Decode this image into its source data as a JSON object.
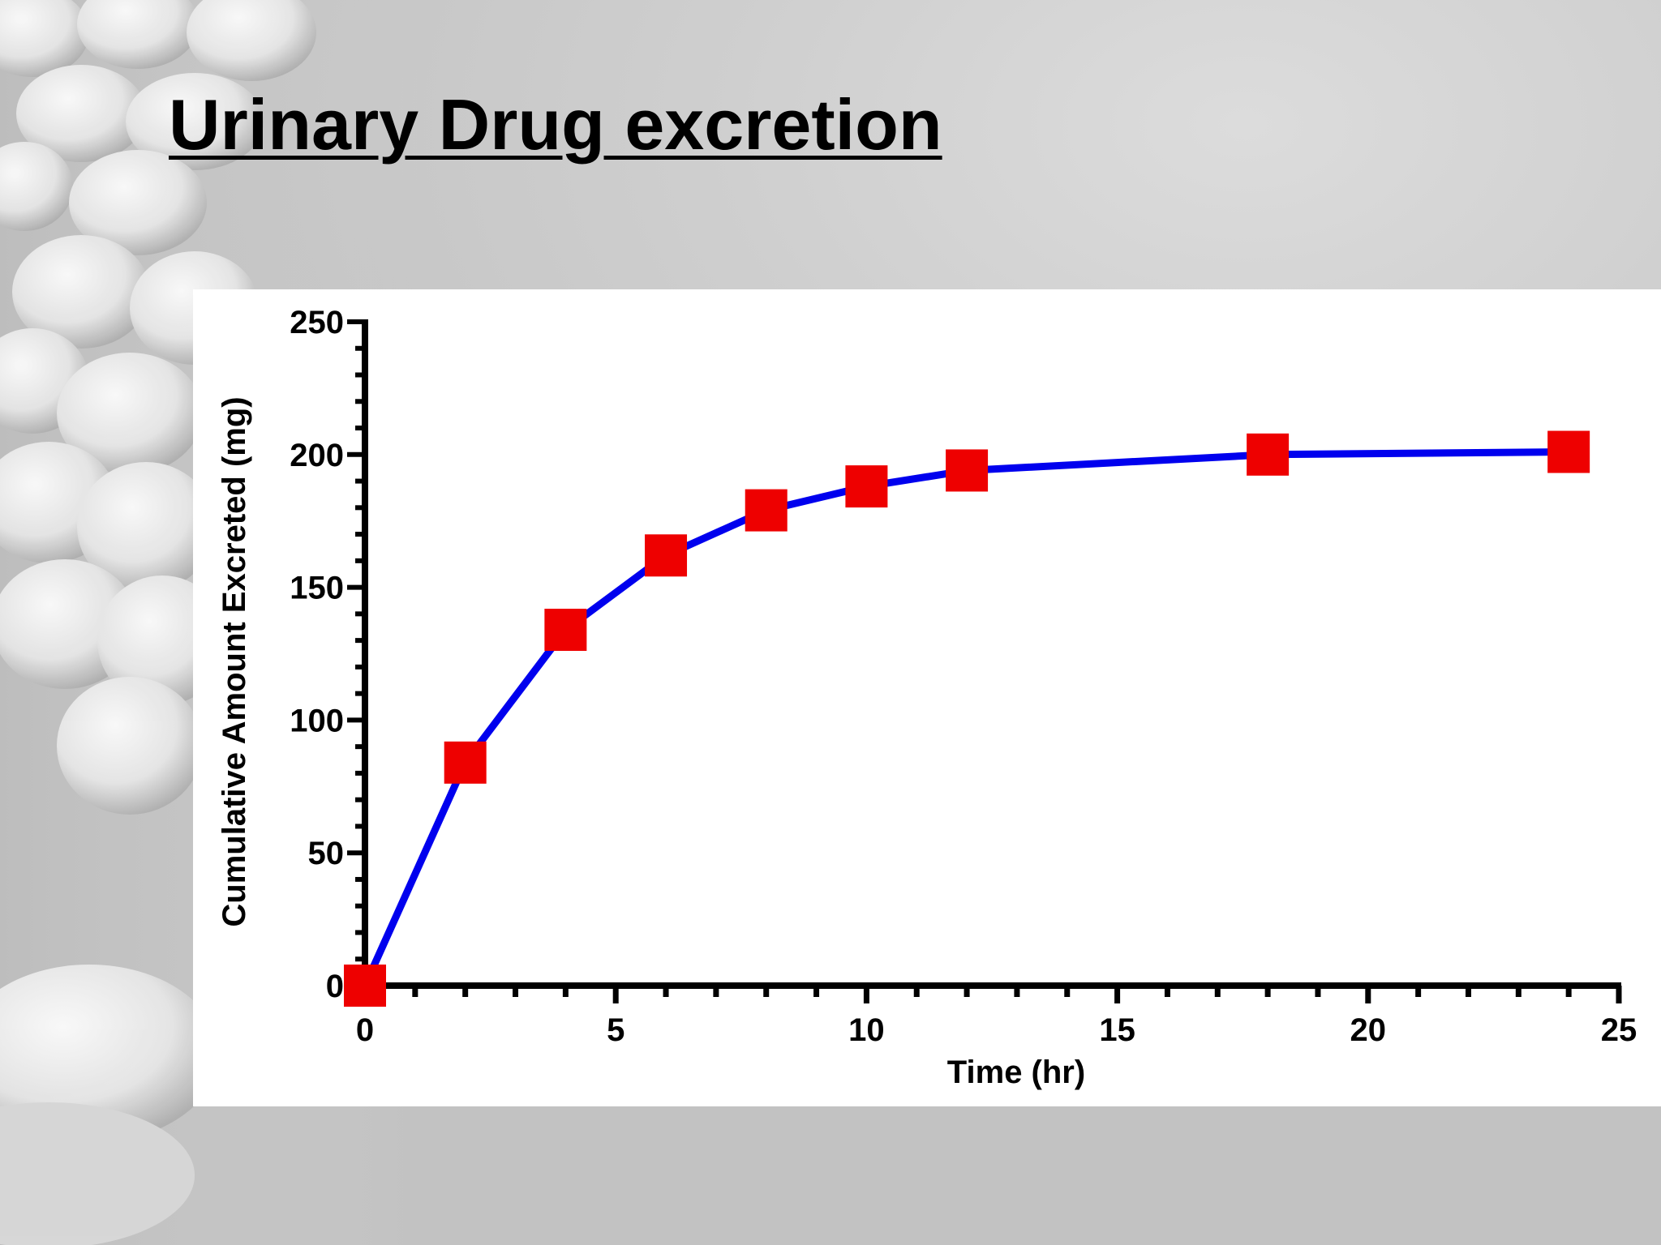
{
  "slide": {
    "title": "Urinary Drug excretion"
  },
  "colors": {
    "line": "#0000ee",
    "marker": "#ee0000",
    "axis": "#000000",
    "panel": "#ffffff"
  },
  "chart_data": {
    "type": "line",
    "title": "",
    "xlabel": "Time (hr)",
    "ylabel": "Cumulative Amount Excreted (mg)",
    "xlim": [
      0,
      25
    ],
    "ylim": [
      0,
      250
    ],
    "x_ticks": [
      "0",
      "5",
      "10",
      "15",
      "20",
      "25"
    ],
    "y_ticks": [
      "0",
      "50",
      "100",
      "150",
      "200",
      "250"
    ],
    "grid": false,
    "legend": "none",
    "series": [
      {
        "marker": "square",
        "x": [
          0,
          2,
          4,
          6,
          8,
          10,
          12,
          18,
          24
        ],
        "y": [
          0,
          84,
          134,
          162,
          179,
          188,
          194,
          200,
          201
        ]
      }
    ]
  }
}
